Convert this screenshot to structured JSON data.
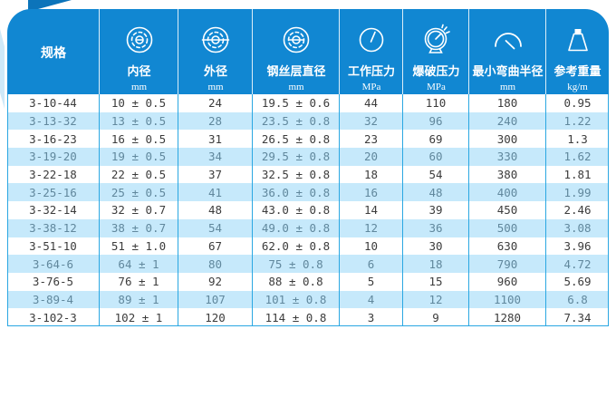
{
  "colors": {
    "header_bg": "#1187d2",
    "grid_line": "#2aa7e2",
    "alt_row_bg": "#c6e9fb",
    "text_dark": "#3c3c3c",
    "text_alt": "#61889d",
    "decor_blue": "#0c74ba",
    "edge_blue": "#cfe9f8"
  },
  "table": {
    "columns": [
      {
        "label": "规格",
        "unit": "",
        "icon": ""
      },
      {
        "label": "内径",
        "unit": "mm",
        "icon": "inner-diameter-icon"
      },
      {
        "label": "外径",
        "unit": "mm",
        "icon": "outer-diameter-icon"
      },
      {
        "label": "钢丝层直径",
        "unit": "mm",
        "icon": "wire-layer-diameter-icon"
      },
      {
        "label": "工作压力",
        "unit": "MPa",
        "icon": "working-pressure-gauge-icon"
      },
      {
        "label": "爆破压力",
        "unit": "MPa",
        "icon": "burst-pressure-gauge-icon"
      },
      {
        "label": "最小弯曲半径",
        "unit": "mm",
        "icon": "bend-radius-icon"
      },
      {
        "label": "参考重量",
        "unit": "kg/m",
        "icon": "weight-icon"
      }
    ],
    "rows": [
      [
        "3-10-44",
        "10 ± 0.5",
        "24",
        "19.5 ± 0.6",
        "44",
        "110",
        "180",
        "0.95"
      ],
      [
        "3-13-32",
        "13 ± 0.5",
        "28",
        "23.5 ± 0.8",
        "32",
        "96",
        "240",
        "1.22"
      ],
      [
        "3-16-23",
        "16 ± 0.5",
        "31",
        "26.5 ± 0.8",
        "23",
        "69",
        "300",
        "1.3"
      ],
      [
        "3-19-20",
        "19 ± 0.5",
        "34",
        "29.5 ± 0.8",
        "20",
        "60",
        "330",
        "1.62"
      ],
      [
        "3-22-18",
        "22 ± 0.5",
        "37",
        "32.5 ± 0.8",
        "18",
        "54",
        "380",
        "1.81"
      ],
      [
        "3-25-16",
        "25 ± 0.5",
        "41",
        "36.0 ± 0.8",
        "16",
        "48",
        "400",
        "1.99"
      ],
      [
        "3-32-14",
        "32 ± 0.7",
        "48",
        "43.0 ± 0.8",
        "14",
        "39",
        "450",
        "2.46"
      ],
      [
        "3-38-12",
        "38 ± 0.7",
        "54",
        "49.0 ± 0.8",
        "12",
        "36",
        "500",
        "3.08"
      ],
      [
        "3-51-10",
        "51 ± 1.0",
        "67",
        "62.0 ± 0.8",
        "10",
        "30",
        "630",
        "3.96"
      ],
      [
        "3-64-6",
        "64 ± 1",
        "80",
        "75 ± 0.8",
        "6",
        "18",
        "790",
        "4.72"
      ],
      [
        "3-76-5",
        "76 ± 1",
        "92",
        "88 ± 0.8",
        "5",
        "15",
        "960",
        "5.69"
      ],
      [
        "3-89-4",
        "89 ± 1",
        "107",
        "101 ± 0.8",
        "4",
        "12",
        "1100",
        "6.8"
      ],
      [
        "3-102-3",
        "102 ± 1",
        "120",
        "114 ± 0.8",
        "3",
        "9",
        "1280",
        "7.34"
      ]
    ]
  }
}
